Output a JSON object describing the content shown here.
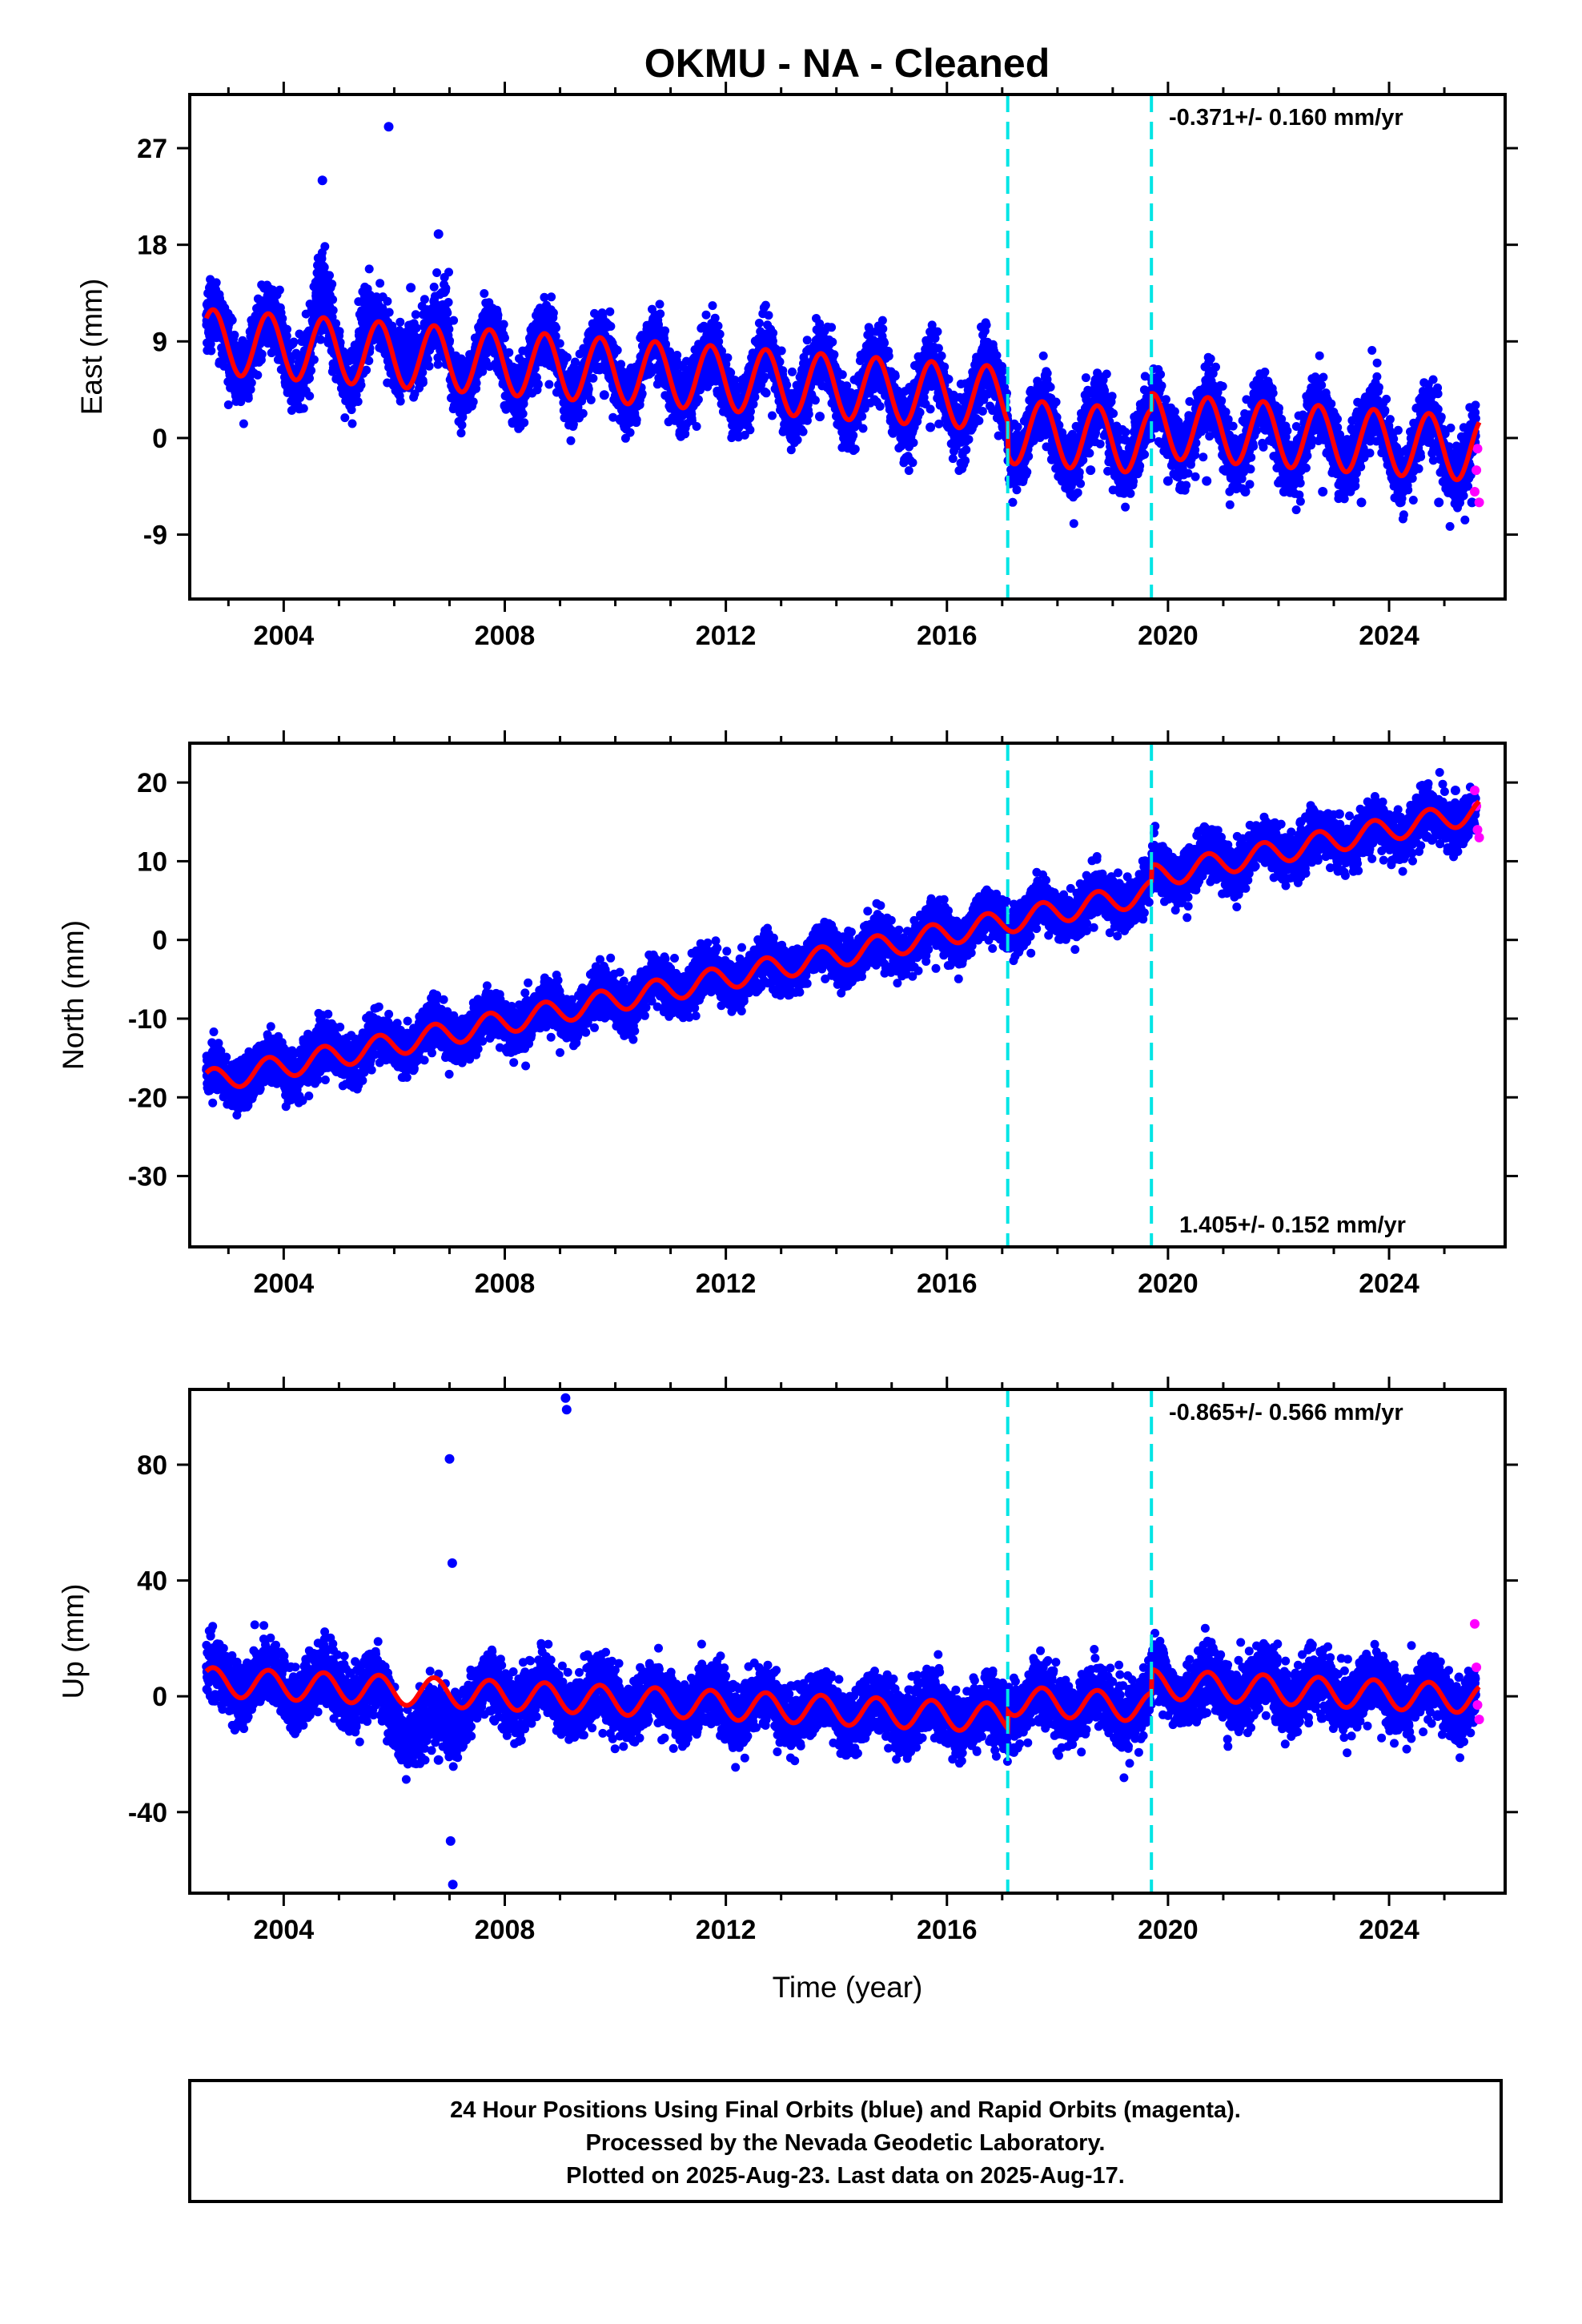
{
  "title": "OKMU  - NA - Cleaned",
  "colors": {
    "final_orbits": "#0000ff",
    "rapid_orbits": "#ff00ff",
    "model": "#ff0000",
    "equipment_change": "#00e5e5",
    "frame": "#000000"
  },
  "chart_data": [
    {
      "type": "scatter",
      "ylabel": "East (mm)",
      "xlabel": "",
      "xlim": [
        2002.3,
        2026.1
      ],
      "ylim": [
        -15.0,
        32.0
      ],
      "xticks": [
        2004,
        2008,
        2012,
        2016,
        2020,
        2024
      ],
      "xtick_labels": [
        "2004",
        "2008",
        "2012",
        "2016",
        "2020",
        "2024"
      ],
      "yticks": [
        -9,
        0,
        9,
        18,
        27
      ],
      "ytick_labels": [
        "-9",
        "0",
        "9",
        "18",
        "27"
      ],
      "rate": "-0.371+/- 0.160 mm/yr",
      "rate_position": "top-right",
      "steps": [
        2017.1,
        2019.7
      ],
      "data_start": 2002.6,
      "data_end": 2025.63,
      "model": {
        "intercept_2002_6": 9.0,
        "trend_mm_per_yr": -0.371,
        "annual_amplitude": 3.0,
        "offsets": [
          [
            2017.1,
            -3.0
          ],
          [
            2019.7,
            1.5
          ]
        ]
      },
      "series": [
        {
          "name": "Final Orbits (blue)",
          "x": [
            2002.8,
            2003.3,
            2003.8,
            2004.3,
            2004.7,
            2005.2,
            2005.9,
            2006.3,
            2006.8,
            2007.4,
            2008.0,
            2008.6,
            2009.2,
            2009.8,
            2010.4,
            2011.0,
            2011.7,
            2012.3,
            2013.0,
            2013.7,
            2014.3,
            2015.0,
            2015.7,
            2016.4,
            2017.2,
            2017.9,
            2018.6,
            2019.3,
            2020.0,
            2020.7,
            2021.4,
            2022.1,
            2022.8,
            2023.5,
            2024.2,
            2024.9,
            2025.5
          ],
          "y": [
            12.0,
            6.0,
            12.0,
            5.0,
            24.0,
            3.0,
            29.0,
            14.0,
            19.0,
            3.0,
            3.0,
            5.0,
            3.0,
            4.0,
            3.0,
            4.0,
            10.0,
            3.0,
            5.0,
            2.0,
            4.0,
            3.0,
            1.0,
            1.0,
            -3.0,
            -2.0,
            -3.0,
            -3.0,
            -4.0,
            -4.0,
            -5.0,
            -5.0,
            -5.0,
            -6.0,
            -6.0,
            -6.0,
            -6.0
          ]
        },
        {
          "name": "Rapid Orbits (magenta)",
          "x": [
            2025.55,
            2025.58,
            2025.6,
            2025.63
          ],
          "y": [
            -5.0,
            -3.0,
            -1.0,
            -6.0
          ]
        }
      ]
    },
    {
      "type": "scatter",
      "ylabel": "North (mm)",
      "xlabel": "",
      "xlim": [
        2002.3,
        2026.1
      ],
      "ylim": [
        -39.0,
        25.0
      ],
      "xticks": [
        2004,
        2008,
        2012,
        2016,
        2020,
        2024
      ],
      "xtick_labels": [
        "2004",
        "2008",
        "2012",
        "2016",
        "2020",
        "2024"
      ],
      "yticks": [
        -30,
        -20,
        -10,
        0,
        10,
        20
      ],
      "ytick_labels": [
        "-30",
        "-20",
        "-10",
        "0",
        "10",
        "20"
      ],
      "rate": "1.405+/- 0.152 mm/yr",
      "rate_position": "bottom-right",
      "steps": [
        2017.1,
        2019.7
      ],
      "data_start": 2002.6,
      "data_end": 2025.63,
      "model": {
        "intercept_2002_6": -18.0,
        "trend_mm_per_yr": 1.405,
        "annual_amplitude": 1.5,
        "offsets": [
          [
            2017.1,
            0.0
          ],
          [
            2019.7,
            2.0
          ]
        ]
      },
      "series": [
        {
          "name": "Final Orbits (blue)",
          "x": [
            2002.8,
            2003.5,
            2004.2,
            2004.9,
            2005.6,
            2006.3,
            2007.0,
            2007.7,
            2008.4,
            2009.1,
            2009.8,
            2010.5,
            2011.2,
            2011.9,
            2012.6,
            2013.3,
            2014.0,
            2014.7,
            2015.4,
            2016.1,
            2016.8,
            2017.5,
            2018.2,
            2018.9,
            2019.6,
            2020.3,
            2021.0,
            2021.7,
            2022.4,
            2023.1,
            2023.8,
            2024.5,
            2025.2
          ],
          "y": [
            -19.0,
            -17.0,
            -16.0,
            -15.0,
            -14.0,
            -13.0,
            -12.0,
            -11.0,
            -9.0,
            -8.0,
            -7.0,
            -6.0,
            -5.0,
            -4.0,
            -3.0,
            -2.0,
            -1.0,
            0.0,
            1.0,
            2.0,
            3.0,
            4.0,
            5.0,
            6.0,
            8.0,
            11.0,
            12.0,
            13.0,
            15.0,
            16.0,
            17.0,
            18.0,
            19.0
          ]
        },
        {
          "name": "Rapid Orbits (magenta)",
          "x": [
            2025.55,
            2025.58,
            2025.6,
            2025.63
          ],
          "y": [
            19.0,
            17.0,
            14.0,
            13.0
          ]
        }
      ]
    },
    {
      "type": "scatter",
      "ylabel": "Up (mm)",
      "xlabel": "Time (year)",
      "xlim": [
        2002.3,
        2026.1
      ],
      "ylim": [
        -68.0,
        106.0
      ],
      "xticks": [
        2004,
        2008,
        2012,
        2016,
        2020,
        2024
      ],
      "xtick_labels": [
        "2004",
        "2008",
        "2012",
        "2016",
        "2020",
        "2024"
      ],
      "yticks": [
        -40,
        0,
        40,
        80
      ],
      "ytick_labels": [
        "-40",
        "0",
        "40",
        "80"
      ],
      "rate": "-0.865+/- 0.566 mm/yr",
      "rate_position": "top-right",
      "steps": [
        2017.1,
        2019.7
      ],
      "data_start": 2002.6,
      "data_end": 2025.63,
      "model": {
        "intercept_2002_6": 5.0,
        "trend_mm_per_yr": -0.865,
        "annual_amplitude": 5.0,
        "offsets": [
          [
            2017.1,
            6.0
          ],
          [
            2019.7,
            8.0
          ]
        ]
      },
      "series": [
        {
          "name": "Final Orbits (blue)",
          "x": [
            2002.8,
            2003.4,
            2004.0,
            2004.6,
            2005.2,
            2005.8,
            2006.3,
            2006.8,
            2007.3,
            2007.9,
            2008.5,
            2009.1,
            2009.7,
            2010.3,
            2010.9,
            2011.5,
            2012.1,
            2012.7,
            2013.3,
            2013.9,
            2014.5,
            2015.1,
            2015.7,
            2016.3,
            2016.9,
            2017.5,
            2018.1,
            2018.7,
            2019.3,
            2019.9,
            2020.5,
            2021.1,
            2021.7,
            2022.3,
            2022.9,
            2023.5,
            2024.1,
            2024.7,
            2025.3,
            2007.0,
            2007.05,
            2009.1,
            2009.12,
            2007.02,
            2007.06
          ],
          "y": [
            18.0,
            8.0,
            14.0,
            5.0,
            8.0,
            -5.0,
            -18.0,
            -22.0,
            -15.0,
            -2.0,
            8.0,
            2.0,
            6.0,
            1.0,
            4.0,
            0.0,
            3.0,
            1.0,
            4.0,
            0.0,
            5.0,
            -1.0,
            3.0,
            -2.0,
            2.0,
            3.0,
            0.0,
            5.0,
            1.0,
            4.0,
            2.0,
            6.0,
            1.0,
            5.0,
            2.0,
            6.0,
            1.0,
            4.0,
            0.0,
            82.0,
            46.0,
            103.0,
            99.0,
            -50.0,
            -65.0
          ]
        },
        {
          "name": "Rapid Orbits (magenta)",
          "x": [
            2025.55,
            2025.58,
            2025.6,
            2025.63
          ],
          "y": [
            25.0,
            10.0,
            -3.0,
            -8.0
          ]
        }
      ]
    }
  ],
  "footer": {
    "line1": "24 Hour Positions Using Final Orbits (blue) and Rapid Orbits (magenta).",
    "line2": "Processed by the Nevada Geodetic Laboratory.",
    "line3": "Plotted on 2025-Aug-23. Last data on 2025-Aug-17."
  }
}
